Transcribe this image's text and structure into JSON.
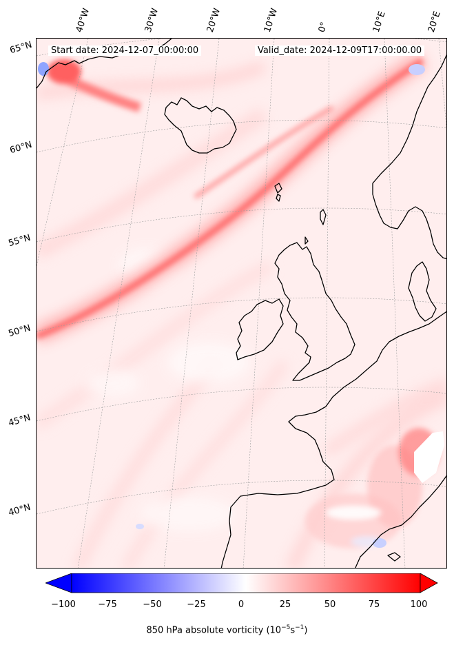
{
  "header": {
    "start_date": "Start date: 2024-12-07_00:00:00",
    "valid_date": "Valid_date: 2024-12-09T17:00:00.00"
  },
  "longitude_labels": [
    "40°W",
    "30°W",
    "20°W",
    "10°W",
    "0°",
    "10°E",
    "20°E"
  ],
  "latitude_labels": [
    "65°N",
    "60°N",
    "55°N",
    "50°N",
    "45°N",
    "40°N"
  ],
  "colorbar": {
    "ticks": [
      "−100",
      "−75",
      "−50",
      "−25",
      "0",
      "25",
      "50",
      "75",
      "100"
    ],
    "label_main": "850 hPa absolute vorticity (10",
    "label_exp1": "−5",
    "label_mid": "s",
    "label_exp2": "−1",
    "label_end": ")",
    "min_color": "#0000ff",
    "mid_color": "#ffffff",
    "max_color": "#ff0000"
  }
}
